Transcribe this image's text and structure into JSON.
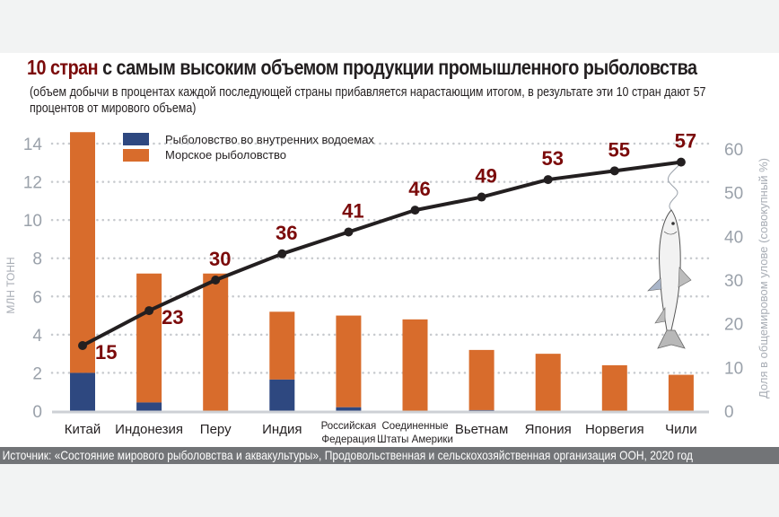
{
  "title_accent": "10 стран",
  "title_rest": " с самым высоким объемом продукции промышленного рыболовства",
  "subtitle": "(объем добычи в процентах каждой последующей страны прибавляется нарастающим итогом, в результате эти 10 стран дают 57 процентов от мирового объема)",
  "source": "Источник: «Состояние мирового рыболовства и аквакультуры», Продовольственная и сельскохозяйственная организация ООН, 2020 год",
  "colors": {
    "inland": "#2e4880",
    "marine": "#d86c2c",
    "line": "#231f20",
    "label": "#7b0a0a"
  },
  "chart_data": {
    "type": "bar",
    "title": "10 стран с самым высоким объемом продукции промышленного рыболовства",
    "ylabel": "МЛН ТОНН",
    "y2label": "Доля в общемировом улове (совокупный %)",
    "ylim": [
      0,
      14
    ],
    "y2lim": [
      0,
      60
    ],
    "yticks": [
      0,
      2,
      4,
      6,
      8,
      10,
      12,
      14
    ],
    "y2ticks": [
      0,
      10,
      20,
      30,
      40,
      50,
      60
    ],
    "grid": true,
    "legend_position": "top-left",
    "categories": [
      [
        "Китай"
      ],
      [
        "Индонезия"
      ],
      [
        "Перу"
      ],
      [
        "Индия"
      ],
      [
        "Российская",
        "Федерация"
      ],
      [
        "Соединенные",
        "Штаты Америки"
      ],
      [
        "Вьетнам"
      ],
      [
        "Япония"
      ],
      [
        "Норвегия"
      ],
      [
        "Чили"
      ]
    ],
    "series": [
      {
        "name": "Рыболовство во внутренних водоемах",
        "type": "bar",
        "stack": "total",
        "values": [
          2.0,
          0.45,
          0.0,
          1.65,
          0.2,
          0.0,
          0.05,
          0.0,
          0.0,
          0.0
        ]
      },
      {
        "name": "Морское рыболовство",
        "type": "bar",
        "stack": "total",
        "values": [
          12.6,
          6.75,
          7.2,
          3.55,
          4.8,
          4.8,
          3.15,
          3.0,
          2.4,
          1.9
        ]
      },
      {
        "name": "Доля в общемировом улове (совокупный %)",
        "type": "line",
        "axis": "y2",
        "values": [
          15,
          23,
          30,
          36,
          41,
          46,
          49,
          53,
          55,
          57
        ]
      }
    ]
  }
}
